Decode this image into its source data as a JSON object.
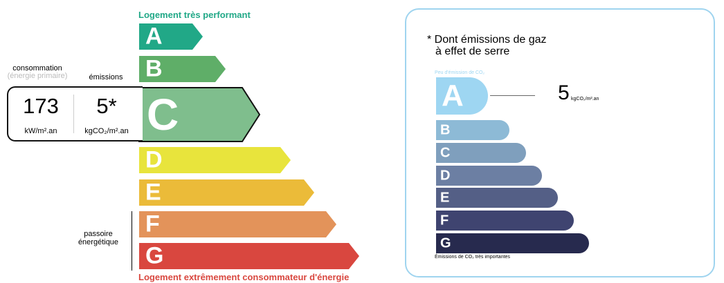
{
  "dpe": {
    "top_label": "Logement très performant",
    "bottom_label": "Logement extrêmement consommateur d'énergie",
    "consumption_label": "consommation",
    "consumption_sub": "(énergie primaire)",
    "emissions_label": "émissions",
    "consumption_value": "173",
    "consumption_unit": "kW/m².an",
    "emissions_value": "5*",
    "emissions_unit": "kgCO₂/m².an",
    "passoire_label": "passoire énergétique",
    "current_class": "C",
    "classes": [
      {
        "letter": "A",
        "color": "#21a887"
      },
      {
        "letter": "B",
        "color": "#5fae68"
      },
      {
        "letter": "C",
        "color": "#7fbe8d"
      },
      {
        "letter": "D",
        "color": "#e8e43c"
      },
      {
        "letter": "E",
        "color": "#ebbb39"
      },
      {
        "letter": "F",
        "color": "#e3935a"
      },
      {
        "letter": "G",
        "color": "#d9473f"
      }
    ]
  },
  "ges": {
    "title_line1": "* Dont émissions de gaz",
    "title_line2": "à effet de serre",
    "top_label": "Peu d'émission de CO₂",
    "bottom_label": "Émissions de CO₂ très importantes",
    "value": "5",
    "unit": "kgCO₂/m².an",
    "current_class": "A",
    "classes": [
      {
        "letter": "A",
        "color": "#9ed6f2"
      },
      {
        "letter": "B",
        "color": "#8dbad6"
      },
      {
        "letter": "C",
        "color": "#7f9fbd"
      },
      {
        "letter": "D",
        "color": "#6c7fa3"
      },
      {
        "letter": "E",
        "color": "#545f86"
      },
      {
        "letter": "F",
        "color": "#3f4470"
      },
      {
        "letter": "G",
        "color": "#272a4e"
      }
    ]
  }
}
